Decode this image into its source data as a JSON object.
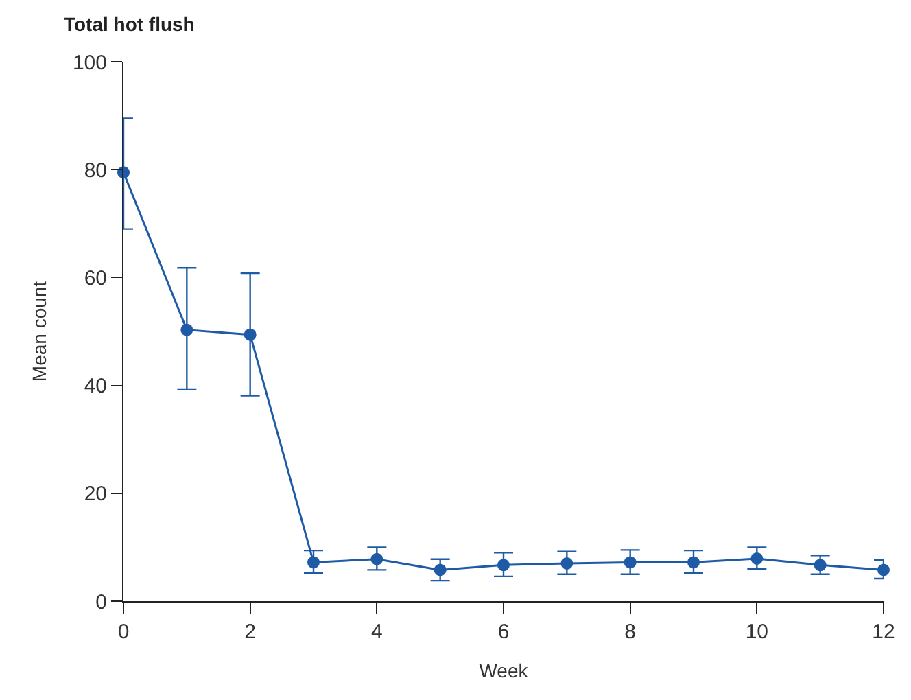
{
  "chart_data": {
    "type": "line",
    "title": "Total hot flush",
    "xlabel": "Week",
    "ylabel": "Mean count",
    "x": [
      0,
      1,
      2,
      3,
      4,
      5,
      6,
      7,
      8,
      9,
      10,
      11,
      12
    ],
    "series": [
      {
        "color": "#1f5aa6",
        "values": [
          79.5,
          50.3,
          49.4,
          7.2,
          7.8,
          5.8,
          6.7,
          7.0,
          7.2,
          7.2,
          7.9,
          6.7,
          5.8
        ],
        "errors": [
          [
            69,
            89.5
          ],
          [
            39.2,
            61.8
          ],
          [
            38.1,
            60.8
          ],
          [
            5.2,
            9.4
          ],
          [
            5.8,
            10
          ],
          [
            3.8,
            7.8
          ],
          [
            4.6,
            9
          ],
          [
            5,
            9.2
          ],
          [
            5,
            9.5
          ],
          [
            5.2,
            9.4
          ],
          [
            6,
            10
          ],
          [
            5,
            8.5
          ],
          [
            4.2,
            7.6
          ]
        ]
      }
    ],
    "xlim": [
      0,
      12
    ],
    "xticks": [
      0,
      2,
      4,
      6,
      8,
      10,
      12
    ],
    "ylim": [
      0,
      100
    ],
    "yticks": [
      0,
      20,
      40,
      60,
      80,
      100
    ],
    "marker": "circle",
    "line_style": "solid"
  }
}
